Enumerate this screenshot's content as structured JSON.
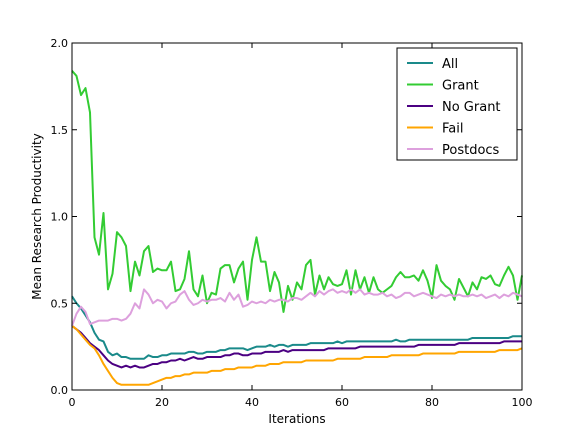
{
  "chart_data": {
    "type": "line",
    "title": "",
    "xlabel": "Iterations",
    "ylabel": "Mean Research Productivity",
    "xlim": [
      0,
      100
    ],
    "ylim": [
      0.0,
      2.0
    ],
    "xticks": [
      "0",
      "20",
      "40",
      "60",
      "80",
      "100"
    ],
    "yticks": [
      "0.0",
      "0.5",
      "1.0",
      "1.5",
      "2.0"
    ],
    "grid": false,
    "legend_position": "top-right",
    "x": [
      0,
      1,
      2,
      3,
      4,
      5,
      6,
      7,
      8,
      9,
      10,
      11,
      12,
      13,
      14,
      15,
      16,
      17,
      18,
      19,
      20,
      21,
      22,
      23,
      24,
      25,
      26,
      27,
      28,
      29,
      30,
      31,
      32,
      33,
      34,
      35,
      36,
      37,
      38,
      39,
      40,
      41,
      42,
      43,
      44,
      45,
      46,
      47,
      48,
      49,
      50,
      51,
      52,
      53,
      54,
      55,
      56,
      57,
      58,
      59,
      60,
      61,
      62,
      63,
      64,
      65,
      66,
      67,
      68,
      69,
      70,
      71,
      72,
      73,
      74,
      75,
      76,
      77,
      78,
      79,
      80,
      81,
      82,
      83,
      84,
      85,
      86,
      87,
      88,
      89,
      90,
      91,
      92,
      93,
      94,
      95,
      96,
      97,
      98,
      99,
      100
    ],
    "series": [
      {
        "name": "All",
        "color": "#1a8a8a",
        "values": [
          0.54,
          0.5,
          0.47,
          0.43,
          0.39,
          0.33,
          0.29,
          0.28,
          0.22,
          0.2,
          0.21,
          0.19,
          0.19,
          0.18,
          0.18,
          0.18,
          0.18,
          0.2,
          0.19,
          0.19,
          0.2,
          0.2,
          0.21,
          0.21,
          0.21,
          0.21,
          0.22,
          0.22,
          0.21,
          0.21,
          0.22,
          0.22,
          0.22,
          0.23,
          0.23,
          0.24,
          0.24,
          0.24,
          0.24,
          0.23,
          0.24,
          0.25,
          0.25,
          0.25,
          0.26,
          0.25,
          0.26,
          0.26,
          0.25,
          0.26,
          0.26,
          0.26,
          0.26,
          0.27,
          0.27,
          0.27,
          0.27,
          0.27,
          0.27,
          0.28,
          0.27,
          0.28,
          0.28,
          0.28,
          0.28,
          0.28,
          0.28,
          0.28,
          0.28,
          0.28,
          0.28,
          0.28,
          0.29,
          0.28,
          0.28,
          0.29,
          0.29,
          0.29,
          0.29,
          0.29,
          0.29,
          0.29,
          0.29,
          0.29,
          0.29,
          0.29,
          0.29,
          0.29,
          0.29,
          0.3,
          0.3,
          0.3,
          0.3,
          0.3,
          0.3,
          0.3,
          0.3,
          0.3,
          0.31,
          0.31,
          0.31
        ]
      },
      {
        "name": "Grant",
        "color": "#33cc33",
        "values": [
          1.84,
          1.81,
          1.7,
          1.74,
          1.6,
          0.88,
          0.78,
          1.02,
          0.58,
          0.67,
          0.91,
          0.88,
          0.83,
          0.57,
          0.74,
          0.66,
          0.8,
          0.83,
          0.68,
          0.7,
          0.69,
          0.69,
          0.74,
          0.57,
          0.58,
          0.64,
          0.8,
          0.58,
          0.54,
          0.66,
          0.5,
          0.56,
          0.55,
          0.7,
          0.72,
          0.72,
          0.62,
          0.7,
          0.74,
          0.52,
          0.75,
          0.88,
          0.74,
          0.74,
          0.57,
          0.68,
          0.62,
          0.45,
          0.6,
          0.52,
          0.62,
          0.58,
          0.72,
          0.75,
          0.55,
          0.66,
          0.58,
          0.65,
          0.61,
          0.6,
          0.61,
          0.69,
          0.55,
          0.69,
          0.58,
          0.65,
          0.56,
          0.65,
          0.58,
          0.56,
          0.58,
          0.6,
          0.65,
          0.68,
          0.65,
          0.65,
          0.66,
          0.63,
          0.69,
          0.63,
          0.53,
          0.72,
          0.63,
          0.6,
          0.58,
          0.52,
          0.64,
          0.59,
          0.54,
          0.62,
          0.58,
          0.65,
          0.64,
          0.66,
          0.61,
          0.6,
          0.66,
          0.71,
          0.66,
          0.52,
          0.66
        ]
      },
      {
        "name": "No Grant",
        "color": "#4b0082",
        "values": [
          0.37,
          0.35,
          0.33,
          0.3,
          0.27,
          0.25,
          0.23,
          0.2,
          0.17,
          0.15,
          0.14,
          0.13,
          0.14,
          0.13,
          0.14,
          0.13,
          0.13,
          0.14,
          0.15,
          0.15,
          0.16,
          0.16,
          0.17,
          0.17,
          0.18,
          0.17,
          0.18,
          0.19,
          0.18,
          0.18,
          0.19,
          0.19,
          0.19,
          0.19,
          0.2,
          0.2,
          0.21,
          0.21,
          0.2,
          0.2,
          0.21,
          0.21,
          0.21,
          0.22,
          0.22,
          0.22,
          0.22,
          0.23,
          0.22,
          0.23,
          0.23,
          0.23,
          0.23,
          0.23,
          0.23,
          0.23,
          0.23,
          0.24,
          0.24,
          0.24,
          0.24,
          0.24,
          0.24,
          0.24,
          0.25,
          0.25,
          0.25,
          0.25,
          0.25,
          0.25,
          0.25,
          0.25,
          0.25,
          0.25,
          0.25,
          0.25,
          0.25,
          0.26,
          0.26,
          0.26,
          0.26,
          0.26,
          0.26,
          0.26,
          0.26,
          0.26,
          0.27,
          0.27,
          0.27,
          0.27,
          0.27,
          0.27,
          0.27,
          0.27,
          0.27,
          0.27,
          0.28,
          0.28,
          0.28,
          0.28,
          0.28
        ]
      },
      {
        "name": "Fail",
        "color": "#ffa500",
        "values": [
          0.37,
          0.35,
          0.32,
          0.29,
          0.26,
          0.24,
          0.2,
          0.15,
          0.11,
          0.07,
          0.04,
          0.03,
          0.03,
          0.03,
          0.03,
          0.03,
          0.03,
          0.03,
          0.04,
          0.05,
          0.06,
          0.07,
          0.07,
          0.08,
          0.08,
          0.09,
          0.09,
          0.1,
          0.1,
          0.1,
          0.1,
          0.11,
          0.11,
          0.11,
          0.12,
          0.12,
          0.12,
          0.13,
          0.13,
          0.13,
          0.13,
          0.14,
          0.14,
          0.14,
          0.15,
          0.15,
          0.15,
          0.16,
          0.16,
          0.16,
          0.16,
          0.16,
          0.17,
          0.17,
          0.17,
          0.17,
          0.17,
          0.17,
          0.17,
          0.18,
          0.18,
          0.18,
          0.18,
          0.18,
          0.18,
          0.19,
          0.19,
          0.19,
          0.19,
          0.19,
          0.19,
          0.2,
          0.2,
          0.2,
          0.2,
          0.2,
          0.2,
          0.2,
          0.21,
          0.21,
          0.21,
          0.21,
          0.21,
          0.21,
          0.21,
          0.21,
          0.22,
          0.22,
          0.22,
          0.22,
          0.22,
          0.22,
          0.22,
          0.22,
          0.22,
          0.23,
          0.23,
          0.23,
          0.23,
          0.23,
          0.24
        ]
      },
      {
        "name": "Postdocs",
        "color": "#dda0dd",
        "values": [
          0.37,
          0.44,
          0.48,
          0.45,
          0.38,
          0.39,
          0.4,
          0.4,
          0.4,
          0.41,
          0.41,
          0.4,
          0.41,
          0.44,
          0.5,
          0.47,
          0.58,
          0.55,
          0.5,
          0.52,
          0.51,
          0.47,
          0.5,
          0.51,
          0.55,
          0.57,
          0.52,
          0.49,
          0.5,
          0.52,
          0.51,
          0.52,
          0.52,
          0.53,
          0.51,
          0.56,
          0.52,
          0.55,
          0.48,
          0.49,
          0.51,
          0.5,
          0.51,
          0.5,
          0.52,
          0.51,
          0.52,
          0.52,
          0.51,
          0.53,
          0.53,
          0.52,
          0.54,
          0.56,
          0.54,
          0.57,
          0.55,
          0.57,
          0.58,
          0.56,
          0.57,
          0.56,
          0.58,
          0.56,
          0.58,
          0.55,
          0.56,
          0.55,
          0.55,
          0.56,
          0.54,
          0.55,
          0.53,
          0.54,
          0.56,
          0.56,
          0.54,
          0.55,
          0.56,
          0.55,
          0.54,
          0.53,
          0.55,
          0.54,
          0.55,
          0.54,
          0.55,
          0.54,
          0.54,
          0.55,
          0.54,
          0.55,
          0.53,
          0.54,
          0.55,
          0.53,
          0.55,
          0.54,
          0.56,
          0.55,
          0.54
        ]
      }
    ]
  }
}
